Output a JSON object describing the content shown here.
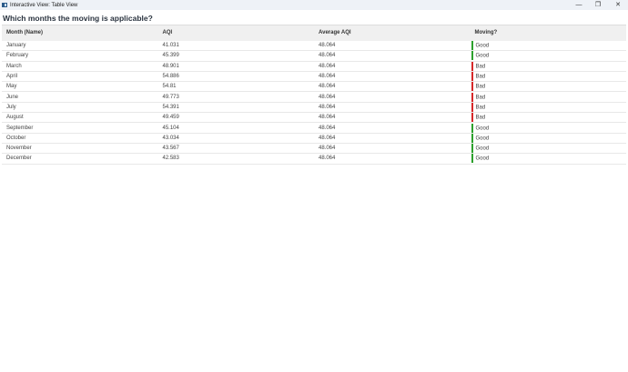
{
  "window": {
    "title": "Interactive View: Table View"
  },
  "heading": "Which months the moving is applicable?",
  "colors": {
    "good": "#2ca02c",
    "bad": "#d62728"
  },
  "table": {
    "columns": [
      "Month (Name)",
      "AQI",
      "Average AQI",
      "Moving?"
    ],
    "rows": [
      [
        "January",
        "41.031",
        "48.064",
        "Good"
      ],
      [
        "February",
        "45.399",
        "48.064",
        "Good"
      ],
      [
        "March",
        "48.901",
        "48.064",
        "Bad"
      ],
      [
        "April",
        "54.886",
        "48.064",
        "Bad"
      ],
      [
        "May",
        "54.81",
        "48.064",
        "Bad"
      ],
      [
        "June",
        "49.773",
        "48.064",
        "Bad"
      ],
      [
        "July",
        "54.391",
        "48.064",
        "Bad"
      ],
      [
        "August",
        "49.459",
        "48.064",
        "Bad"
      ],
      [
        "September",
        "45.104",
        "48.064",
        "Good"
      ],
      [
        "October",
        "43.034",
        "48.064",
        "Good"
      ],
      [
        "November",
        "43.567",
        "48.064",
        "Good"
      ],
      [
        "December",
        "42.583",
        "48.064",
        "Good"
      ]
    ]
  }
}
